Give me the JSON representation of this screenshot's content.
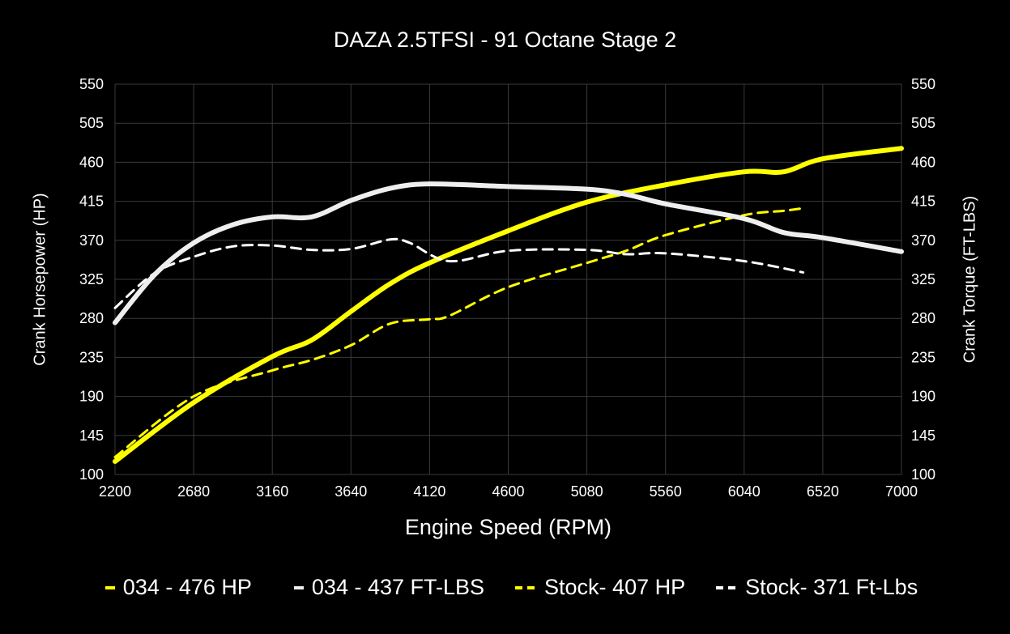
{
  "chart_data": {
    "type": "line",
    "title": "DAZA 2.5TFSI - 91 Octane Stage 2",
    "xlabel": "Engine Speed (RPM)",
    "ylabel": "Crank Horsepower (HP)",
    "y2label": "Crank Torque (FT-LBS)",
    "xlim": [
      2200,
      7000
    ],
    "ylim": [
      100,
      550
    ],
    "y2lim": [
      100,
      550
    ],
    "xticks": [
      "2200",
      "2680",
      "3160",
      "3640",
      "4120",
      "4600",
      "5080",
      "5560",
      "6040",
      "6520",
      "7000"
    ],
    "yticks": [
      "100",
      "145",
      "190",
      "235",
      "280",
      "325",
      "370",
      "415",
      "460",
      "505",
      "550"
    ],
    "grid": true,
    "legend": "bottom",
    "series": [
      {
        "name": "034 - 476 HP",
        "color": "#ffff00",
        "style": "solid",
        "x": [
          2200,
          2680,
          3160,
          3400,
          3640,
          3880,
          4120,
          4600,
          5080,
          5560,
          6040,
          6280,
          6520,
          7000
        ],
        "y": [
          115,
          183,
          236,
          255,
          288,
          320,
          344,
          381,
          414,
          434,
          449,
          449,
          464,
          476
        ]
      },
      {
        "name": "034 - 437 FT-LBS",
        "color": "#eeeeee",
        "style": "solid",
        "x": [
          2200,
          2440,
          2680,
          2920,
          3160,
          3400,
          3640,
          3880,
          4120,
          4600,
          5080,
          5320,
          5560,
          6040,
          6280,
          6520,
          7000
        ],
        "y": [
          275,
          330,
          367,
          388,
          397,
          397,
          416,
          430,
          435,
          432,
          429,
          423,
          412,
          395,
          379,
          373,
          357
        ]
      },
      {
        "name": "Stock- 407 HP",
        "color": "#ffff00",
        "style": "dashed",
        "x": [
          2200,
          2680,
          3160,
          3400,
          3640,
          3880,
          4120,
          4240,
          4600,
          5080,
          5320,
          5560,
          6040,
          6280,
          6400
        ],
        "y": [
          120,
          190,
          220,
          232,
          249,
          274,
          279,
          283,
          316,
          344,
          358,
          376,
          399,
          404,
          407
        ]
      },
      {
        "name": "Stock- 371 Ft-Lbs",
        "color": "#ffffff",
        "style": "dashed",
        "x": [
          2200,
          2440,
          2680,
          2920,
          3160,
          3400,
          3640,
          3880,
          4000,
          4240,
          4600,
          5080,
          5320,
          5560,
          6040,
          6400
        ],
        "y": [
          292,
          332,
          351,
          363,
          364,
          359,
          360,
          371,
          367,
          346,
          358,
          359,
          354,
          355,
          346,
          333
        ]
      }
    ]
  }
}
